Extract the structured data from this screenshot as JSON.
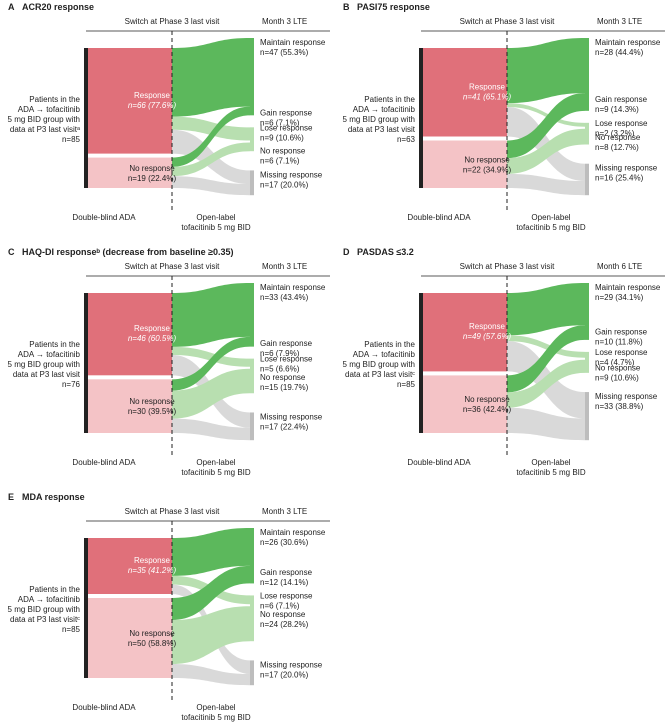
{
  "colors": {
    "response_dark": "#e0707a",
    "response_light": "#f4c3c6",
    "flow_green": "#5cb85c",
    "flow_light_green": "#b8dfb0",
    "flow_grey": "#d9d9d9",
    "bar_black": "#222222",
    "bar_grey": "#bdbdbd"
  },
  "panels": [
    {
      "letter": "A",
      "title": "ACR20 response",
      "header_switch": "Switch at Phase 3 last visit",
      "header_lte": "Month 3 LTE",
      "patients": [
        "Patients in the",
        "ADA → tofacitinib",
        "5 mg BID group with",
        "data at P3 last visitᵃ",
        "n=85"
      ],
      "left": [
        {
          "line1": "Response",
          "line2": "n=66 (77.6%)"
        },
        {
          "line1": "No response",
          "line2": "n=19 (22.4%)"
        }
      ],
      "right": [
        {
          "line1": "Maintain response",
          "line2": "n=47 (55.3%)"
        },
        {
          "line1": "Gain response",
          "line2": "n=6 (7.1%)"
        },
        {
          "line1": "Lose response",
          "line2": "n=9 (10.6%)"
        },
        {
          "line1": "No response",
          "line2": "n=6 (7.1%)"
        },
        {
          "line1": "Missing response",
          "line2": "n=17 (20.0%)"
        }
      ],
      "footer_left": "Double-blind ADA",
      "footer_right": [
        "Open-label",
        "tofacitinib 5 mg BID"
      ]
    },
    {
      "letter": "B",
      "title": "PASI75 response",
      "header_switch": "Switch at Phase 3 last visit",
      "header_lte": "Month 3 LTE",
      "patients": [
        "Patients in the",
        "ADA → tofacitinib",
        "5 mg BID group with",
        "data at P3 last visit",
        "n=63"
      ],
      "left": [
        {
          "line1": "Response",
          "line2": "n=41 (65.1%)"
        },
        {
          "line1": "No response",
          "line2": "n=22 (34.9%)"
        }
      ],
      "right": [
        {
          "line1": "Maintain response",
          "line2": "n=28 (44.4%)"
        },
        {
          "line1": "Gain response",
          "line2": "n=9 (14.3%)"
        },
        {
          "line1": "Lose response",
          "line2": "n=2 (3.2%)"
        },
        {
          "line1": "No response",
          "line2": "n=8 (12.7%)"
        },
        {
          "line1": "Missing response",
          "line2": "n=16 (25.4%)"
        }
      ],
      "footer_left": "Double-blind ADA",
      "footer_right": [
        "Open-label",
        "tofacitinib 5 mg BID"
      ]
    },
    {
      "letter": "C",
      "title": "HAQ-DI responseᵇ (decrease from baseline ≥0.35)",
      "header_switch": "Switch at Phase 3 last visit",
      "header_lte": "Month 3 LTE",
      "patients": [
        "Patients in the",
        "ADA → tofacitinib",
        "5 mg BID group with",
        "data at P3 last visit",
        "n=76"
      ],
      "left": [
        {
          "line1": "Response",
          "line2": "n=46 (60.5%)"
        },
        {
          "line1": "No response",
          "line2": "n=30 (39.5%)"
        }
      ],
      "right": [
        {
          "line1": "Maintain response",
          "line2": "n=33 (43.4%)"
        },
        {
          "line1": "Gain response",
          "line2": "n=6 (7.9%)"
        },
        {
          "line1": "Lose response",
          "line2": "n=5 (6.6%)"
        },
        {
          "line1": "No response",
          "line2": "n=15 (19.7%)"
        },
        {
          "line1": "Missing response",
          "line2": "n=17 (22.4%)"
        }
      ],
      "footer_left": "Double-blind ADA",
      "footer_right": [
        "Open-label",
        "tofacitinib 5 mg BID"
      ]
    },
    {
      "letter": "D",
      "title": "PASDAS ≤3.2",
      "header_switch": "Switch at Phase 3 last visit",
      "header_lte": "Month 6 LTE",
      "patients": [
        "Patients in the",
        "ADA → tofacitinib",
        "5 mg BID group with",
        "data at P3 last visitᶜ",
        "n=85"
      ],
      "left": [
        {
          "line1": "Response",
          "line2": "n=49 (57.6%)"
        },
        {
          "line1": "No response",
          "line2": "n=36 (42.4%)"
        }
      ],
      "right": [
        {
          "line1": "Maintain response",
          "line2": "n=29 (34.1%)"
        },
        {
          "line1": "Gain response",
          "line2": "n=10 (11.8%)"
        },
        {
          "line1": "Lose response",
          "line2": "n=4 (4.7%)"
        },
        {
          "line1": "No response",
          "line2": "n=9 (10.6%)"
        },
        {
          "line1": "Missing response",
          "line2": "n=33 (38.8%)"
        }
      ],
      "footer_left": "Double-blind ADA",
      "footer_right": [
        "Open-label",
        "tofacitinib 5 mg BID"
      ]
    },
    {
      "letter": "E",
      "title": "MDA response",
      "header_switch": "Switch at Phase 3 last visit",
      "header_lte": "Month 3 LTE",
      "patients": [
        "Patients in the",
        "ADA → tofacitinib",
        "5 mg BID group with",
        "data at P3 last visitᶜ",
        "n=85"
      ],
      "left": [
        {
          "line1": "Response",
          "line2": "n=35 (41.2%)"
        },
        {
          "line1": "No response",
          "line2": "n=50 (58.8%)"
        }
      ],
      "right": [
        {
          "line1": "Maintain response",
          "line2": "n=26 (30.6%)"
        },
        {
          "line1": "Gain response",
          "line2": "n=12 (14.1%)"
        },
        {
          "line1": "Lose response",
          "line2": "n=6 (7.1%)"
        },
        {
          "line1": "No response",
          "line2": "n=24 (28.2%)"
        },
        {
          "line1": "Missing response",
          "line2": "n=17 (20.0%)"
        }
      ],
      "footer_left": "Double-blind ADA",
      "footer_right": [
        "Open-label",
        "tofacitinib 5 mg BID"
      ]
    }
  ]
}
